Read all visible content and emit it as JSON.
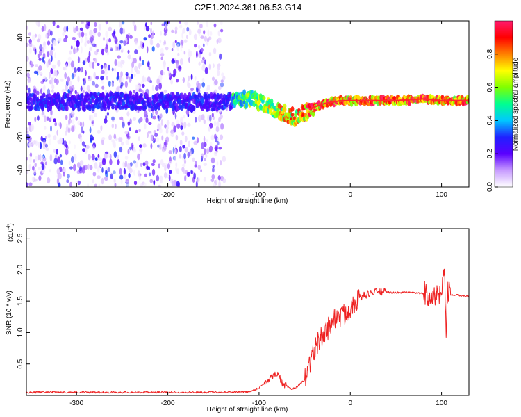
{
  "figure": {
    "title": "C2E1.2024.361.06.53.G14"
  },
  "chart_data": [
    {
      "type": "heatmap",
      "xlabel": "Height of straight line (km)",
      "ylabel": "Frequency (Hz)",
      "xlim": [
        -355,
        130
      ],
      "ylim": [
        -50,
        50
      ],
      "xticks": [
        -300,
        -200,
        -100,
        0,
        100
      ],
      "yticks": [
        -40,
        -20,
        0,
        20,
        40
      ],
      "colorbar": {
        "label": "Normalized spectral amplitude",
        "range": [
          0,
          1
        ],
        "ticks": [
          0.0,
          0.2,
          0.4,
          0.6,
          0.8
        ],
        "colors": [
          "#ffffff",
          "#c79bff",
          "#5a00ff",
          "#2020ff",
          "#00c8ff",
          "#00ff90",
          "#80ff00",
          "#ffff00",
          "#ff8000",
          "#ff0000",
          "#ff1a6e"
        ]
      },
      "ridge": {
        "x": [
          -355,
          -300,
          -250,
          -200,
          -150,
          -130,
          -110,
          -100,
          -90,
          -80,
          -70,
          -60,
          -55,
          -50,
          -40,
          -30,
          -20,
          -10,
          0,
          20,
          50,
          80,
          100,
          130
        ],
        "y": [
          1,
          1,
          2,
          1,
          1,
          2,
          3,
          1,
          -1,
          -4,
          -6,
          -8,
          -7,
          -5,
          -2,
          0,
          1,
          2,
          2,
          2,
          2,
          3,
          2,
          2
        ]
      },
      "grid": false,
      "legend": "colorbar right"
    },
    {
      "type": "line",
      "xlabel": "Height of straight line (km)",
      "ylabel": "SNR (10 * v/v)",
      "scale_label": "(x10",
      "scale_exp": "4",
      "xlim": [
        -355,
        130
      ],
      "ylim": [
        0,
        2.65
      ],
      "xticks": [
        -300,
        -200,
        -100,
        0,
        100
      ],
      "yticks": [
        0.5,
        1.0,
        1.5,
        2.0,
        2.5
      ],
      "ytick_labels": [
        "0.5",
        "1.0",
        "1.5",
        "2.0",
        "2.5"
      ],
      "color": "#ee2222",
      "grid": false,
      "series": [
        {
          "x": [
            -355,
            -250,
            -150,
            -110,
            -100,
            -90,
            -85,
            -80,
            -75,
            -70,
            -65,
            -60,
            -55,
            -50,
            -45,
            -40,
            -35,
            -30,
            -25,
            -20,
            -15,
            -10,
            -5,
            0,
            5,
            10,
            20,
            30,
            40,
            50,
            60,
            70,
            80,
            90,
            95,
            100,
            103,
            105,
            107,
            110,
            130
          ],
          "y": [
            0.05,
            0.05,
            0.05,
            0.06,
            0.12,
            0.25,
            0.32,
            0.36,
            0.2,
            0.15,
            0.1,
            0.12,
            0.18,
            0.25,
            0.5,
            0.7,
            0.85,
            0.95,
            1.05,
            1.2,
            1.25,
            1.25,
            1.3,
            1.4,
            1.5,
            1.55,
            1.62,
            1.65,
            1.64,
            1.63,
            1.64,
            1.63,
            1.62,
            1.6,
            1.55,
            1.6,
            1.9,
            1.1,
            1.6,
            1.6,
            1.58
          ]
        }
      ]
    }
  ]
}
